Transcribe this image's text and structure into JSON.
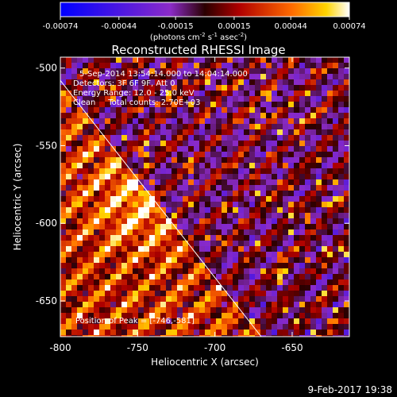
{
  "chart_data": {
    "type": "heatmap",
    "title": "Reconstructed RHESSI Image",
    "xlabel": "Heliocentric X (arcsec)",
    "ylabel": "Heliocentric Y (arcsec)",
    "xlim": [
      -800,
      -613
    ],
    "ylim": [
      -673,
      -493
    ],
    "x_ticks": [
      -800,
      -750,
      -700,
      -650
    ],
    "y_ticks": [
      -500,
      -550,
      -600,
      -650
    ],
    "colorbar": {
      "range": [
        -0.00074,
        0.00074
      ],
      "tick_labels": [
        "-0.00074",
        "-0.00044",
        "-0.00015",
        "0.00015",
        "0.00044",
        "0.00074"
      ],
      "unit_parts": [
        "(photons cm",
        "-2",
        " s",
        "-1",
        " asec",
        "-2",
        ")"
      ]
    },
    "info_lines": [
      "5-Sep-2014 13:54:14.000 to 14:04:14.000",
      "Detectors: 3F 6F 9F, Att 0",
      "Energy Range: 12.0 - 25.0 keV",
      "Clean     Total counts: 2.70E+03"
    ],
    "peak_label": "Position of Peak = [-746,-581]",
    "peak": {
      "x": -746,
      "y": -581
    },
    "limb_line": [
      {
        "x": -800,
        "y": -508
      },
      {
        "x": -670,
        "y": -673
      }
    ]
  },
  "footer": {
    "date": "9-Feb-2017 19:38"
  }
}
